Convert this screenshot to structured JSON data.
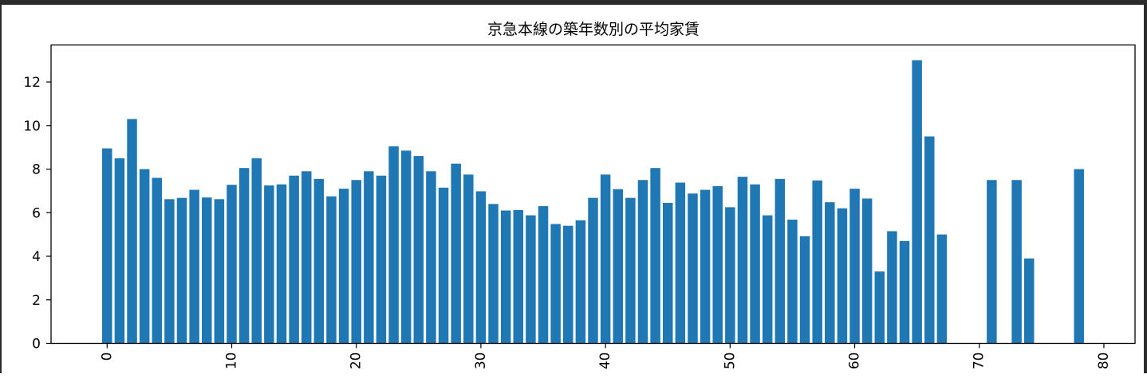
{
  "chart_data": {
    "type": "bar",
    "title": "京急本線の築年数別の平均家賃",
    "xlabel": "",
    "ylabel": "",
    "xlim": [
      -4.5,
      82.5
    ],
    "ylim": [
      0,
      13.7
    ],
    "xticks": [
      0,
      10,
      20,
      30,
      40,
      50,
      60,
      70,
      80
    ],
    "yticks": [
      0,
      2,
      4,
      6,
      8,
      10,
      12
    ],
    "xtick_labels": [
      "0",
      "10",
      "20",
      "30",
      "40",
      "50",
      "60",
      "70",
      "80"
    ],
    "ytick_labels": [
      "0",
      "2",
      "4",
      "6",
      "8",
      "10",
      "12"
    ],
    "x_tick_rotation": 90,
    "grid": false,
    "color": "#1f77b4",
    "x": [
      0,
      1,
      2,
      3,
      4,
      5,
      6,
      7,
      8,
      9,
      10,
      11,
      12,
      13,
      14,
      15,
      16,
      17,
      18,
      19,
      20,
      21,
      22,
      23,
      24,
      25,
      26,
      27,
      28,
      29,
      30,
      31,
      32,
      33,
      34,
      35,
      36,
      37,
      38,
      39,
      40,
      41,
      42,
      43,
      44,
      45,
      46,
      47,
      48,
      49,
      50,
      51,
      52,
      53,
      54,
      55,
      56,
      57,
      58,
      59,
      60,
      61,
      62,
      63,
      64,
      65,
      66,
      67,
      71,
      73,
      74,
      78
    ],
    "values": [
      8.95,
      8.5,
      10.3,
      8.0,
      7.6,
      6.62,
      6.68,
      7.05,
      6.7,
      6.62,
      7.28,
      8.05,
      8.5,
      7.25,
      7.3,
      7.7,
      7.9,
      7.55,
      6.75,
      7.1,
      7.5,
      7.9,
      7.7,
      9.05,
      8.85,
      8.6,
      7.9,
      7.15,
      8.25,
      7.75,
      6.98,
      6.4,
      6.1,
      6.12,
      5.88,
      6.3,
      5.48,
      5.4,
      5.65,
      6.68,
      7.75,
      7.08,
      6.68,
      7.5,
      8.05,
      6.45,
      7.38,
      6.88,
      7.05,
      7.22,
      6.25,
      7.65,
      7.3,
      5.88,
      7.55,
      5.68,
      4.92,
      7.48,
      6.48,
      6.2,
      7.1,
      6.65,
      3.3,
      5.15,
      4.7,
      13.0,
      9.5,
      5.0,
      7.5,
      7.5,
      3.9,
      8.0
    ]
  }
}
